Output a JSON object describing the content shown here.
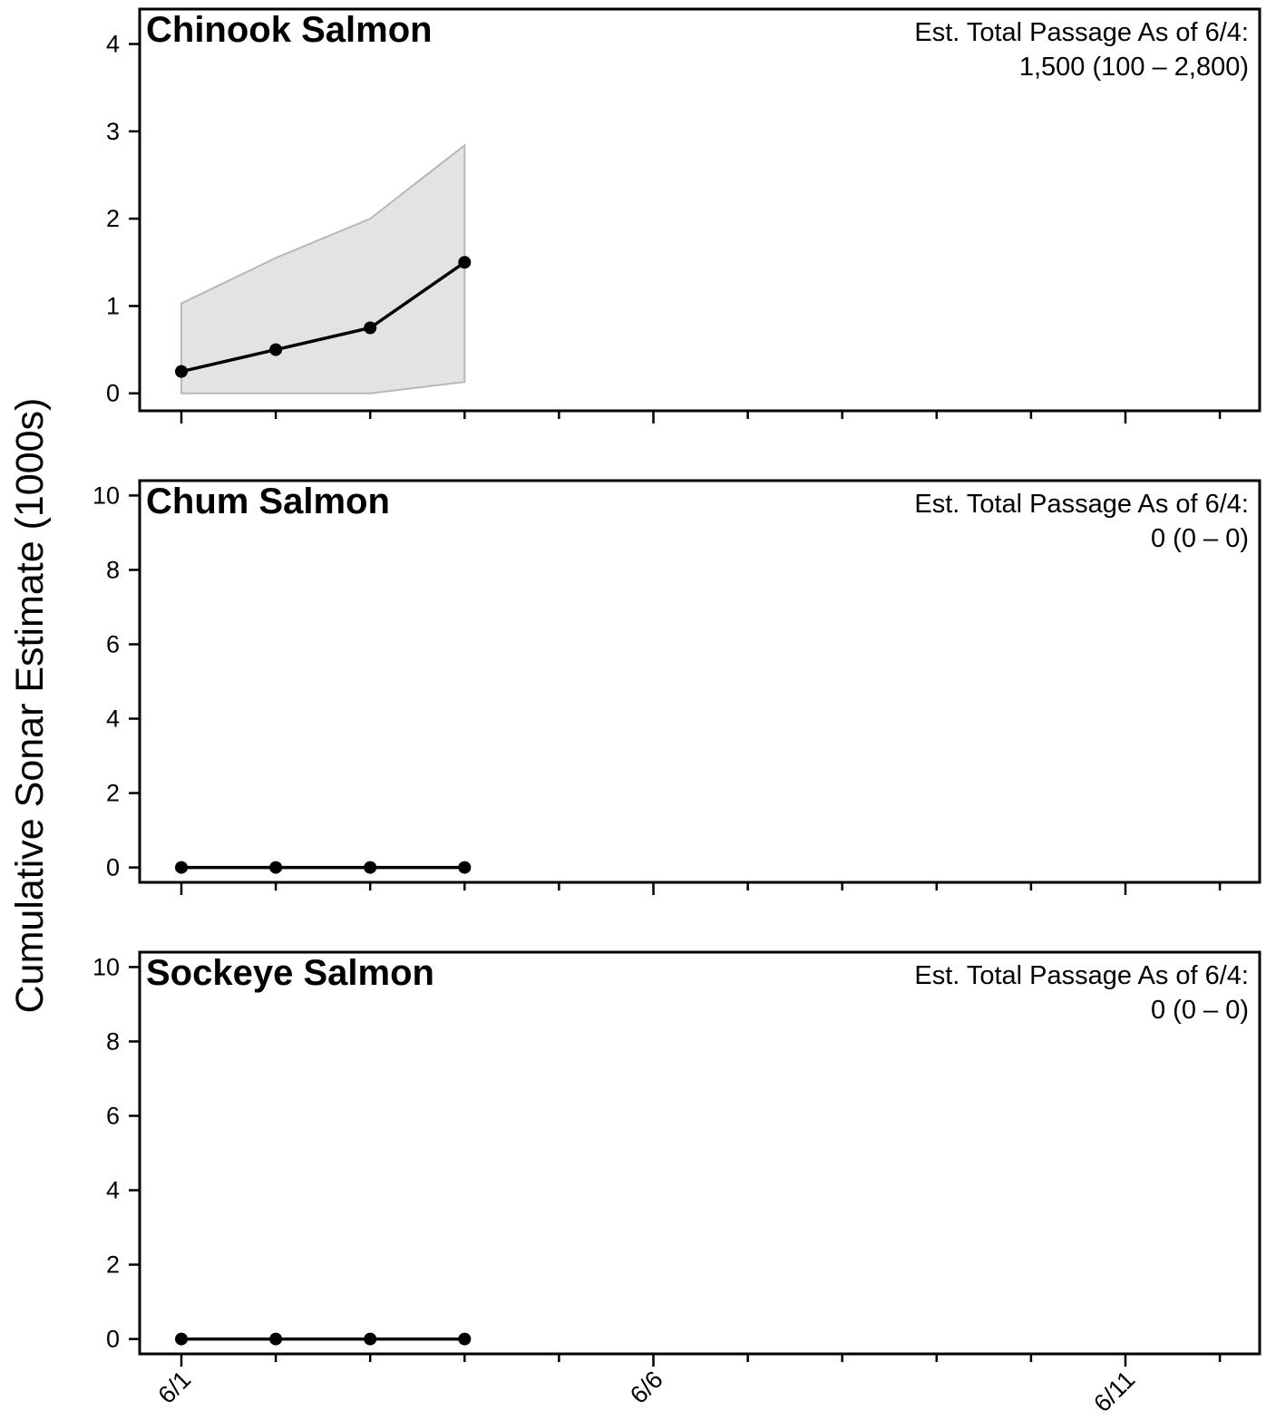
{
  "chart_data": {
    "type": "line",
    "ylabel": "Cumulative Sonar Estimate (1000s)",
    "x_axis": {
      "ticks": [
        "6/1",
        "6/2",
        "6/3",
        "6/4",
        "6/5",
        "6/6",
        "6/7",
        "6/8",
        "6/9",
        "6/10",
        "6/11",
        "6/12"
      ],
      "tick_labels": {
        "6/1": "6/1",
        "6/6": "6/6",
        "6/11": "6/11"
      },
      "range": [
        "5/31/2024",
        "6/12/2024"
      ]
    },
    "panels": [
      {
        "title": "Chinook Salmon",
        "annotation_line1": "Est. Total Passage As of 6/4:",
        "annotation_line2": "1,500 (100 – 2,800)",
        "ylim": [
          -0.2,
          4.4
        ],
        "yticks": [
          0,
          1,
          2,
          3,
          4
        ],
        "x": [
          "6/1",
          "6/2",
          "6/3",
          "6/4"
        ],
        "values": [
          0.25,
          0.5,
          0.75,
          1.5
        ],
        "lower": [
          0.0,
          0.0,
          0.0,
          0.13
        ],
        "upper": [
          1.03,
          1.55,
          2.0,
          2.84
        ]
      },
      {
        "title": "Chum Salmon",
        "annotation_line1": "Est. Total Passage As of 6/4:",
        "annotation_line2": "0 (0 – 0)",
        "ylim": [
          -0.4,
          10.4
        ],
        "yticks": [
          0,
          2,
          4,
          6,
          8,
          10
        ],
        "x": [
          "6/1",
          "6/2",
          "6/3",
          "6/4"
        ],
        "values": [
          0,
          0,
          0,
          0
        ]
      },
      {
        "title": "Sockeye Salmon",
        "annotation_line1": "Est. Total Passage As of 6/4:",
        "annotation_line2": "0 (0 – 0)",
        "ylim": [
          -0.4,
          10.4
        ],
        "yticks": [
          0,
          2,
          4,
          6,
          8,
          10
        ],
        "x": [
          "6/1",
          "6/2",
          "6/3",
          "6/4"
        ],
        "values": [
          0,
          0,
          0,
          0
        ]
      }
    ],
    "colors": {
      "line": "#000000",
      "band_fill": "#e3e3e3",
      "band_edge": "#b8b8b8"
    },
    "grid": false
  }
}
